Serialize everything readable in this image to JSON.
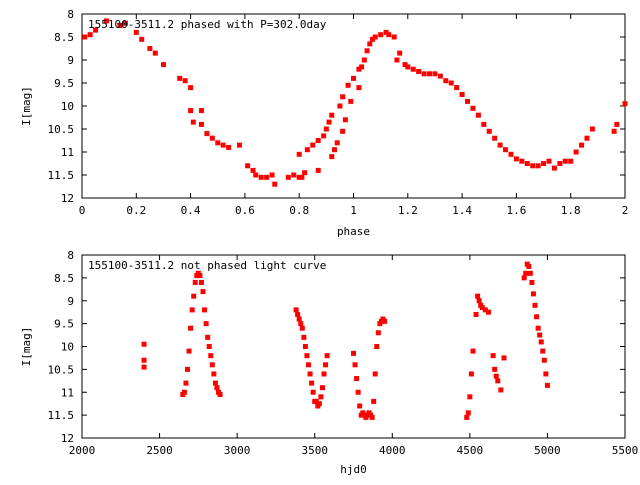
{
  "chart_data": [
    {
      "type": "scatter",
      "title": "155100-3511.2 phased with P=302.0day",
      "xlabel": "phase",
      "ylabel": "I[mag]",
      "xlim": [
        0,
        2
      ],
      "ylim": [
        8,
        12
      ],
      "y_inverted": true,
      "x_ticks": [
        "0",
        "0.2",
        "0.4",
        "0.6",
        "0.8",
        "1",
        "1.2",
        "1.4",
        "1.6",
        "1.8",
        "2"
      ],
      "y_ticks": [
        "8",
        "8.5",
        "9",
        "9.5",
        "10",
        "10.5",
        "11",
        "11.5",
        "12"
      ],
      "marker_color": "#ff0000",
      "grid": false,
      "series": [
        {
          "x": [
            0.01,
            0.03,
            0.05,
            0.09,
            0.14,
            0.16,
            0.2,
            0.22,
            0.25,
            0.27,
            0.3,
            0.36,
            0.38,
            0.4,
            0.4,
            0.41,
            0.44,
            0.44,
            0.46,
            0.48,
            0.5,
            0.52,
            0.54,
            0.58,
            0.61,
            0.63,
            0.64,
            0.66,
            0.68,
            0.7,
            0.71,
            0.76,
            0.78,
            0.8,
            0.8,
            0.81,
            0.82,
            0.83,
            0.85,
            0.87,
            0.87,
            0.89,
            0.9,
            0.91,
            0.92,
            0.92,
            0.93,
            0.94,
            0.95,
            0.96,
            0.96,
            0.97,
            0.98,
            0.99,
            1.0,
            1.02,
            1.02,
            1.03,
            1.04,
            1.05,
            1.06,
            1.07,
            1.08,
            1.1,
            1.12,
            1.13,
            1.15,
            1.16,
            1.17,
            1.19,
            1.2,
            1.22,
            1.24,
            1.26,
            1.28,
            1.3,
            1.32,
            1.34,
            1.36,
            1.38,
            1.4,
            1.42,
            1.44,
            1.46,
            1.48,
            1.5,
            1.52,
            1.54,
            1.56,
            1.58,
            1.6,
            1.62,
            1.64,
            1.66,
            1.68,
            1.7,
            1.72,
            1.74,
            1.76,
            1.78,
            1.8,
            1.82,
            1.84,
            1.86,
            1.88,
            1.96,
            1.97,
            2.0
          ],
          "y": [
            8.5,
            8.45,
            8.35,
            8.15,
            8.25,
            8.2,
            8.4,
            8.55,
            8.75,
            8.85,
            9.1,
            9.4,
            9.45,
            9.6,
            10.1,
            10.35,
            10.4,
            10.1,
            10.6,
            10.7,
            10.8,
            10.85,
            10.9,
            10.85,
            11.3,
            11.4,
            11.5,
            11.55,
            11.55,
            11.5,
            11.7,
            11.55,
            11.5,
            11.05,
            11.55,
            11.55,
            11.45,
            10.95,
            10.85,
            10.75,
            11.4,
            10.65,
            10.5,
            10.35,
            11.1,
            10.2,
            10.95,
            10.8,
            10.0,
            10.55,
            9.8,
            10.3,
            9.55,
            9.9,
            9.4,
            9.6,
            9.2,
            9.15,
            9.0,
            8.8,
            8.65,
            8.55,
            8.5,
            8.45,
            8.4,
            8.45,
            8.5,
            9.0,
            8.85,
            9.1,
            9.15,
            9.2,
            9.25,
            9.3,
            9.3,
            9.3,
            9.35,
            9.45,
            9.5,
            9.6,
            9.75,
            9.9,
            10.05,
            10.2,
            10.4,
            10.55,
            10.7,
            10.85,
            10.95,
            11.05,
            11.15,
            11.2,
            11.25,
            11.3,
            11.3,
            11.25,
            11.2,
            11.35,
            11.25,
            11.2,
            11.2,
            11.0,
            10.85,
            10.7,
            10.5,
            10.55,
            10.4,
            9.95
          ]
        }
      ]
    },
    {
      "type": "scatter",
      "title": "155100-3511.2 not phased light curve",
      "xlabel": "hjd0",
      "ylabel": "I[mag]",
      "xlim": [
        2000,
        5500
      ],
      "ylim": [
        8,
        12
      ],
      "y_inverted": true,
      "x_ticks": [
        "2000",
        "2500",
        "3000",
        "3500",
        "4000",
        "4500",
        "5000",
        "5500"
      ],
      "y_ticks": [
        "8",
        "8.5",
        "9",
        "9.5",
        "10",
        "10.5",
        "11",
        "11.5",
        "12"
      ],
      "marker_color": "#ff0000",
      "grid": false,
      "series": [
        {
          "x": [
            2400,
            2400,
            2400,
            2650,
            2660,
            2670,
            2680,
            2690,
            2700,
            2710,
            2720,
            2730,
            2740,
            2750,
            2760,
            2770,
            2780,
            2790,
            2800,
            2810,
            2820,
            2830,
            2840,
            2850,
            2860,
            2870,
            2880,
            2890,
            3380,
            3390,
            3400,
            3410,
            3420,
            3430,
            3440,
            3450,
            3460,
            3470,
            3480,
            3490,
            3500,
            3510,
            3520,
            3530,
            3540,
            3550,
            3560,
            3570,
            3580,
            3750,
            3760,
            3770,
            3780,
            3790,
            3800,
            3810,
            3820,
            3830,
            3840,
            3850,
            3860,
            3870,
            3880,
            3890,
            3900,
            3910,
            3920,
            3930,
            3940,
            3950,
            4480,
            4490,
            4500,
            4510,
            4520,
            4540,
            4550,
            4560,
            4570,
            4580,
            4600,
            4620,
            4650,
            4660,
            4670,
            4680,
            4700,
            4720,
            4850,
            4860,
            4870,
            4880,
            4890,
            4900,
            4910,
            4920,
            4930,
            4940,
            4950,
            4960,
            4970,
            4980,
            4990,
            5000
          ],
          "y": [
            9.95,
            10.3,
            10.45,
            11.05,
            11.0,
            10.8,
            10.5,
            10.1,
            9.6,
            9.2,
            8.9,
            8.6,
            8.45,
            8.4,
            8.45,
            8.6,
            8.8,
            9.2,
            9.5,
            9.8,
            10.0,
            10.2,
            10.4,
            10.6,
            10.8,
            10.9,
            11.0,
            11.05,
            9.2,
            9.3,
            9.4,
            9.5,
            9.6,
            9.8,
            10.0,
            10.2,
            10.4,
            10.6,
            10.8,
            11.0,
            11.2,
            11.2,
            11.3,
            11.25,
            11.1,
            10.9,
            10.6,
            10.4,
            10.2,
            10.15,
            10.4,
            10.7,
            11.0,
            11.3,
            11.5,
            11.45,
            11.5,
            11.55,
            11.5,
            11.45,
            11.5,
            11.55,
            11.2,
            10.6,
            10.0,
            9.7,
            9.5,
            9.45,
            9.4,
            9.45,
            11.55,
            11.45,
            11.1,
            10.6,
            10.1,
            9.3,
            8.9,
            9.0,
            9.1,
            9.15,
            9.2,
            9.25,
            10.2,
            10.5,
            10.65,
            10.75,
            10.95,
            10.25,
            8.5,
            8.4,
            8.2,
            8.25,
            8.4,
            8.6,
            8.85,
            9.1,
            9.35,
            9.6,
            9.75,
            9.9,
            10.1,
            10.3,
            10.6,
            10.85
          ]
        }
      ]
    }
  ]
}
